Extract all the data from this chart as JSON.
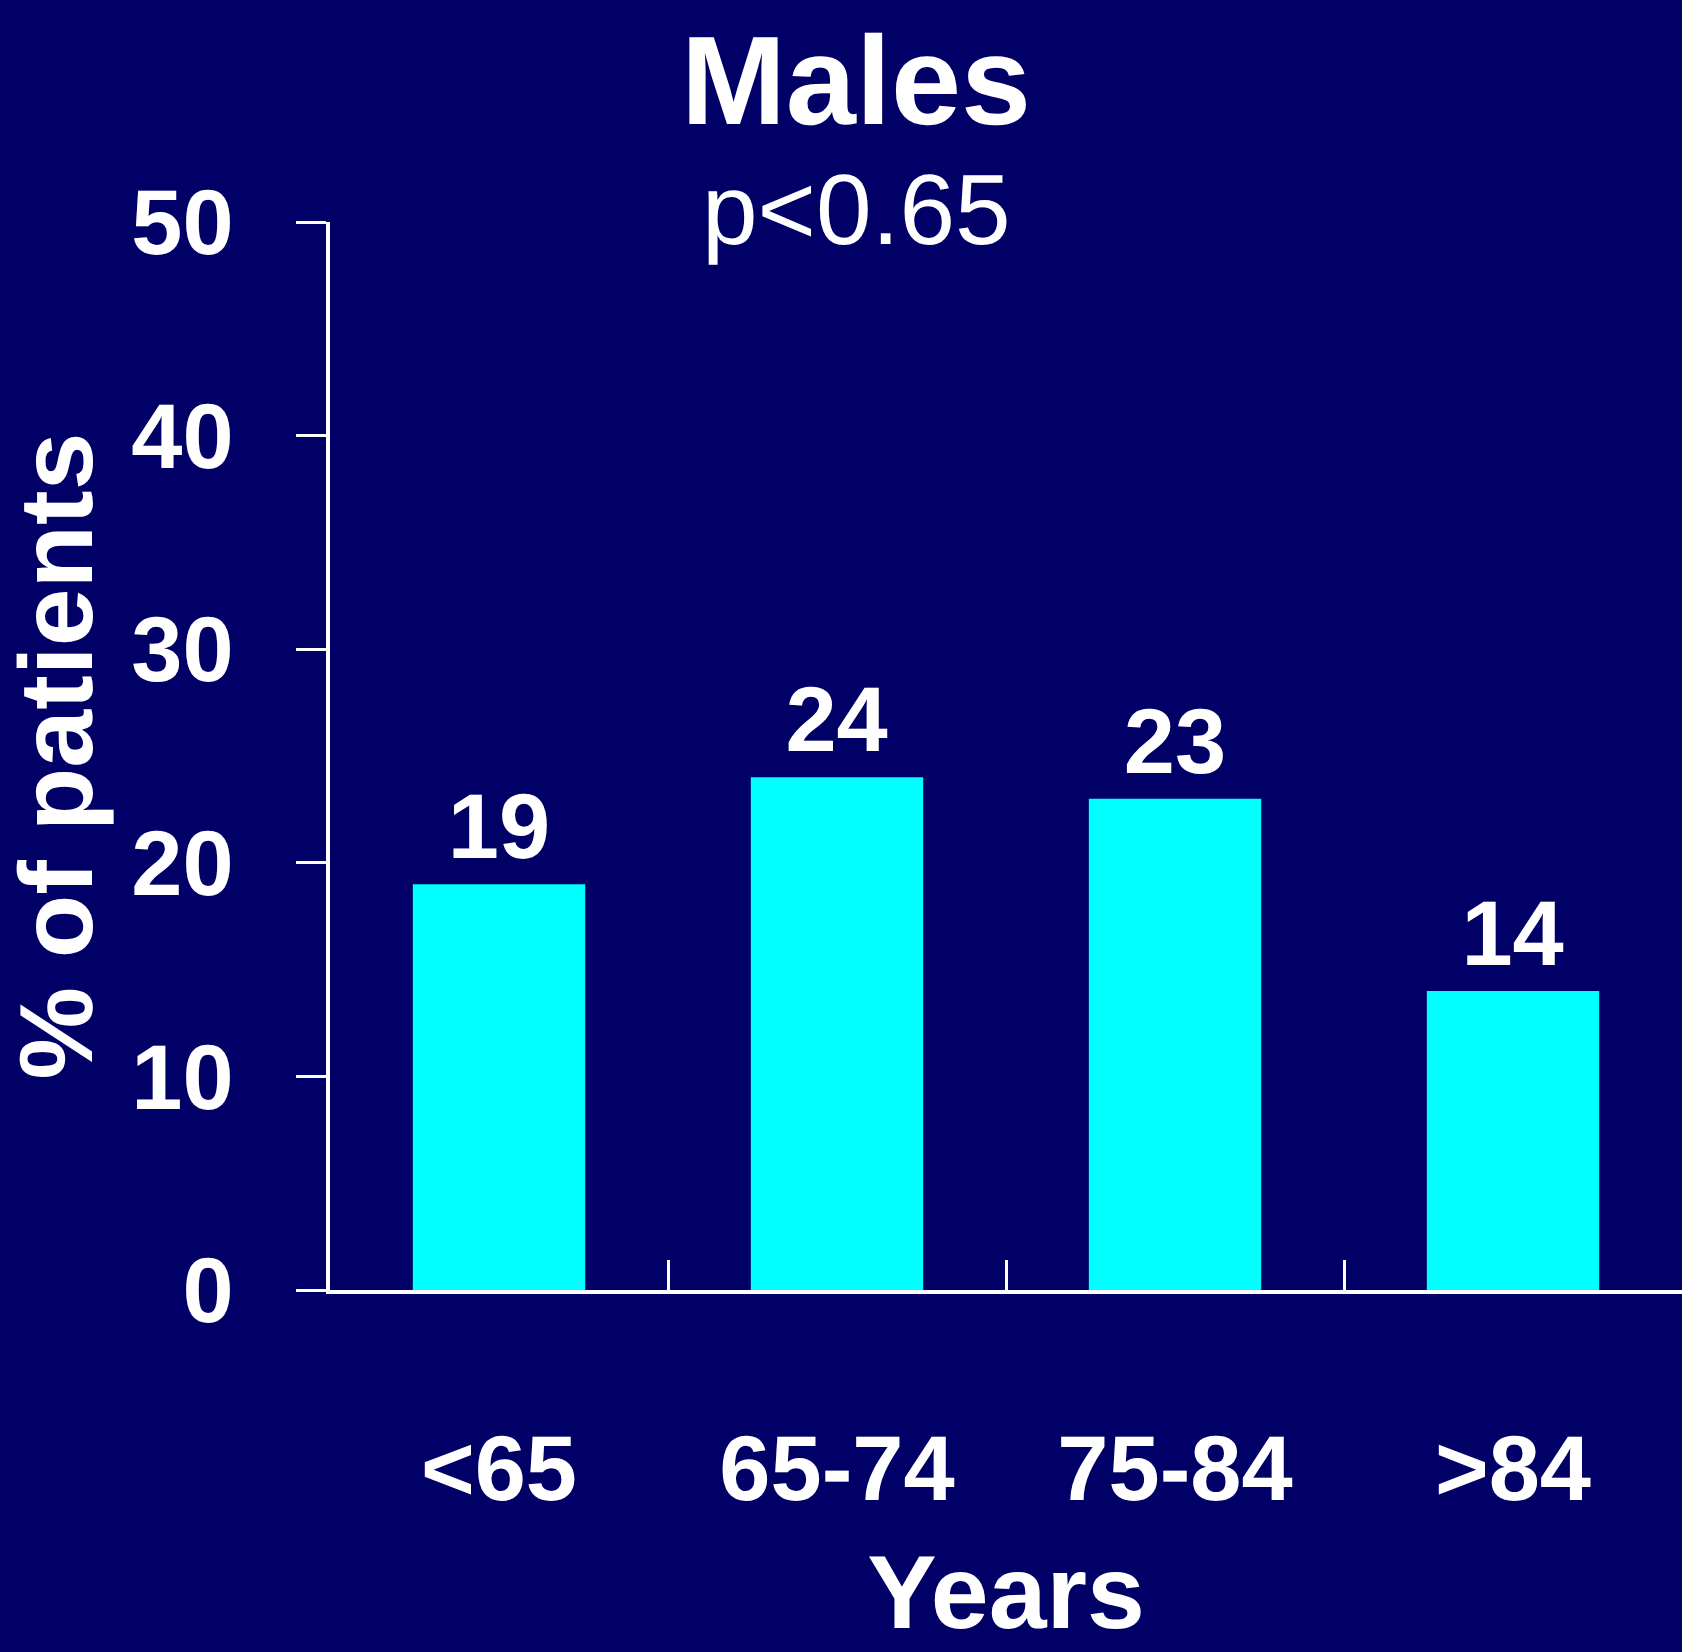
{
  "chart_data": {
    "type": "bar",
    "title": "Males",
    "subtitle": "p<0.65",
    "xlabel": "Years",
    "ylabel": "% of patients",
    "categories": [
      "<65",
      "65-74",
      "75-84",
      ">84"
    ],
    "values": [
      19,
      24,
      23,
      14
    ],
    "color": "#00ffff",
    "ylim": [
      0,
      50
    ],
    "yticks": [
      0,
      10,
      20,
      30,
      40,
      50
    ],
    "data_labels": true
  }
}
